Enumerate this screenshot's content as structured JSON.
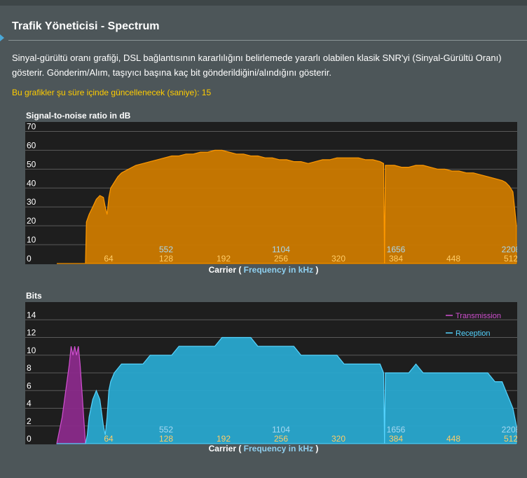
{
  "page": {
    "title": "Trafik Yöneticisi - Spectrum",
    "description": "Sinyal-gürültü oranı grafiği, DSL bağlantısının kararlılığını belirlemede yararlı olabilen klasik SNR'yi (Sinyal-Gürültü Oranı) gösterir. Gönderim/Alım, taşıyıcı başına kaç bit gönderildiğini/alındığını gösterir.",
    "refresh_note": "Bu grafikler şu süre içinde güncellenecek (saniye): 15"
  },
  "colors": {
    "snr_fill": "#cc7a00",
    "snr_line": "#ff9900",
    "reception": "#29a8cf",
    "reception_line": "#55d4ff",
    "transmission": "#8a2a8a",
    "transmission_line": "#d050d0",
    "grid": "#5a5a5a",
    "tick_text": "#ffffff",
    "carrier_text": "#ffcc66",
    "freq_text": "#a8d8f0"
  },
  "chart_data": [
    {
      "type": "area",
      "title": "Signal-to-noise ratio in dB",
      "xlabel_prefix": "Carrier (",
      "xlabel_freq": "Frequency in kHz",
      "xlabel_suffix": ")",
      "ylim": [
        0,
        75
      ],
      "xlim": [
        0,
        512
      ],
      "yticks": [
        0,
        10,
        20,
        30,
        40,
        50,
        60,
        70
      ],
      "carrier_ticks": [
        64,
        128,
        192,
        256,
        320,
        384,
        448,
        512
      ],
      "freq_ticks": [
        {
          "carrier": 128,
          "label": "552"
        },
        {
          "carrier": 256,
          "label": "1104"
        },
        {
          "carrier": 384,
          "label": "1656"
        },
        {
          "carrier": 512,
          "label": "2208"
        }
      ],
      "grid": true,
      "series": [
        {
          "x": [
            0,
            32,
            33,
            36,
            40,
            44,
            48,
            52,
            54,
            56,
            58,
            60,
            64,
            68,
            72,
            80,
            88,
            96,
            104,
            112,
            120,
            128,
            136,
            144,
            152,
            160,
            168,
            176,
            184,
            192,
            200,
            208,
            216,
            224,
            232,
            240,
            248,
            256,
            264,
            272,
            280,
            288,
            296,
            304,
            312,
            320,
            328,
            336,
            344,
            352,
            360,
            364,
            365,
            366,
            368,
            376,
            384,
            392,
            400,
            408,
            416,
            424,
            432,
            440,
            448,
            456,
            464,
            472,
            480,
            488,
            496,
            500,
            504,
            508,
            512
          ],
          "values": [
            0,
            0,
            22,
            26,
            30,
            34,
            36,
            35,
            30,
            26,
            35,
            40,
            43,
            46,
            48,
            50,
            52,
            53,
            54,
            55,
            56,
            57,
            57,
            58,
            58,
            59,
            59,
            60,
            60,
            59,
            58,
            58,
            57,
            57,
            56,
            56,
            55,
            55,
            54,
            54,
            53,
            54,
            55,
            55,
            56,
            56,
            56,
            56,
            55,
            55,
            54,
            53,
            0,
            52,
            52,
            52,
            51,
            51,
            52,
            52,
            51,
            50,
            50,
            49,
            49,
            48,
            48,
            47,
            46,
            45,
            44,
            43,
            41,
            38,
            20
          ]
        }
      ]
    },
    {
      "type": "area",
      "title": "Bits",
      "xlabel_prefix": "Carrier (",
      "xlabel_freq": "Frequency in kHz",
      "xlabel_suffix": ")",
      "ylim": [
        0,
        16
      ],
      "xlim": [
        0,
        512
      ],
      "yticks": [
        0,
        2,
        4,
        6,
        8,
        10,
        12,
        14
      ],
      "carrier_ticks": [
        64,
        128,
        192,
        256,
        320,
        384,
        448,
        512
      ],
      "freq_ticks": [
        {
          "carrier": 128,
          "label": "552"
        },
        {
          "carrier": 256,
          "label": "1104"
        },
        {
          "carrier": 384,
          "label": "1656"
        },
        {
          "carrier": 512,
          "label": "2208"
        }
      ],
      "grid": true,
      "legend": {
        "position": "top-right"
      },
      "series": [
        {
          "name": "Transmission",
          "x": [
            0,
            6,
            10,
            14,
            16,
            18,
            20,
            22,
            24,
            26,
            28,
            30,
            32
          ],
          "values": [
            0,
            3,
            6,
            9,
            11,
            10,
            11,
            10,
            11,
            9,
            6,
            3,
            0
          ],
          "color": "#d050d0"
        },
        {
          "name": "Reception",
          "x": [
            0,
            32,
            34,
            36,
            40,
            44,
            48,
            52,
            54,
            56,
            58,
            60,
            64,
            72,
            80,
            88,
            96,
            104,
            112,
            120,
            128,
            136,
            144,
            152,
            160,
            168,
            176,
            184,
            192,
            200,
            208,
            216,
            224,
            232,
            240,
            248,
            256,
            264,
            272,
            280,
            288,
            296,
            304,
            312,
            320,
            328,
            336,
            344,
            352,
            360,
            364,
            365,
            366,
            368,
            376,
            384,
            392,
            400,
            408,
            416,
            424,
            432,
            440,
            448,
            456,
            464,
            472,
            480,
            488,
            496,
            500,
            504,
            508,
            512
          ],
          "values": [
            0,
            0,
            1,
            3,
            5,
            6,
            5,
            2,
            1,
            3,
            6,
            7,
            8,
            9,
            9,
            9,
            9,
            10,
            10,
            10,
            10,
            11,
            11,
            11,
            11,
            11,
            11,
            12,
            12,
            12,
            12,
            12,
            11,
            11,
            11,
            11,
            11,
            11,
            10,
            10,
            10,
            10,
            10,
            10,
            9,
            9,
            9,
            9,
            9,
            9,
            8,
            0,
            8,
            8,
            8,
            8,
            8,
            9,
            8,
            8,
            8,
            8,
            8,
            8,
            8,
            8,
            8,
            8,
            7,
            7,
            6,
            5,
            4,
            2
          ],
          "color": "#55d4ff"
        }
      ]
    }
  ]
}
